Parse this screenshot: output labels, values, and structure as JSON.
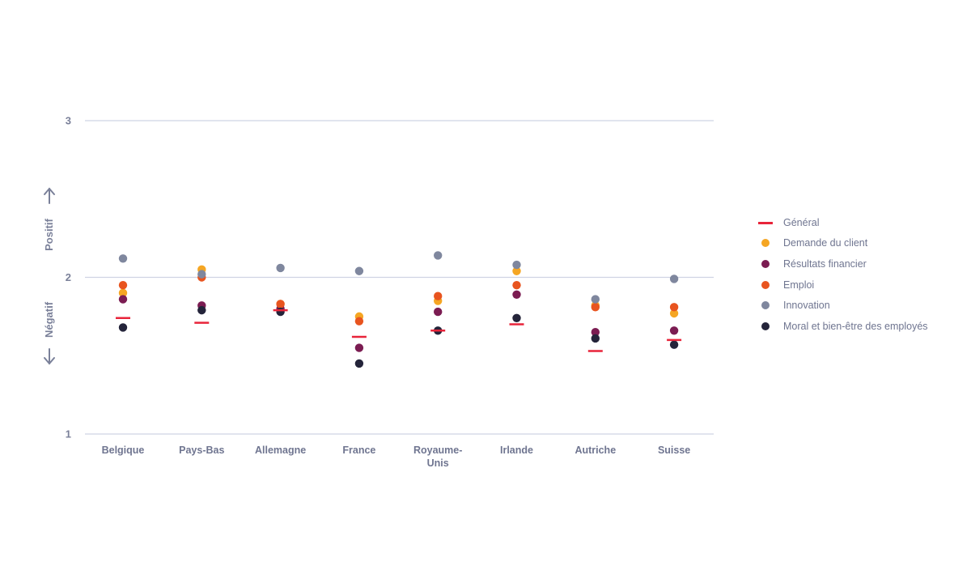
{
  "chart_data": {
    "type": "scatter",
    "title": "",
    "xlabel": "",
    "ylabel_positive": "Positif",
    "ylabel_negative": "Négatif",
    "ylim": [
      1,
      3
    ],
    "yticks": [
      1,
      2,
      3
    ],
    "categories": [
      "Belgique",
      "Pays-Bas",
      "Allemagne",
      "France",
      "Royaume-Unis",
      "Irlande",
      "Autriche",
      "Suisse"
    ],
    "category_lines": [
      [
        "Belgique"
      ],
      [
        "Pays-Bas"
      ],
      [
        "Allemagne"
      ],
      [
        "France"
      ],
      [
        "Royaume-",
        "Unis"
      ],
      [
        "Irlande"
      ],
      [
        "Autriche"
      ],
      [
        "Suisse"
      ]
    ],
    "series": [
      {
        "name": "Général",
        "marker": "dash",
        "color": "#e8243a",
        "values": [
          1.74,
          1.71,
          1.79,
          1.62,
          1.66,
          1.7,
          1.53,
          1.6
        ]
      },
      {
        "name": "Demande du client",
        "marker": "dot",
        "color": "#f5a623",
        "values": [
          1.9,
          2.05,
          1.83,
          1.75,
          1.85,
          2.04,
          1.82,
          1.77
        ]
      },
      {
        "name": "Résultats financier",
        "marker": "dot",
        "color": "#7b1c52",
        "values": [
          1.86,
          1.82,
          1.8,
          1.55,
          1.78,
          1.89,
          1.65,
          1.66
        ]
      },
      {
        "name": "Emploi",
        "marker": "dot",
        "color": "#e8541f",
        "values": [
          1.95,
          2.0,
          1.83,
          1.72,
          1.88,
          1.95,
          1.81,
          1.81
        ]
      },
      {
        "name": "Innovation",
        "marker": "dot",
        "color": "#7f879e",
        "values": [
          2.12,
          2.02,
          2.06,
          2.04,
          2.14,
          2.08,
          1.86,
          1.99
        ]
      },
      {
        "name": "Moral et bien-être des employés",
        "marker": "dot",
        "color": "#24243a",
        "values": [
          1.68,
          1.79,
          1.78,
          1.45,
          1.66,
          1.74,
          1.61,
          1.57
        ]
      }
    ]
  }
}
